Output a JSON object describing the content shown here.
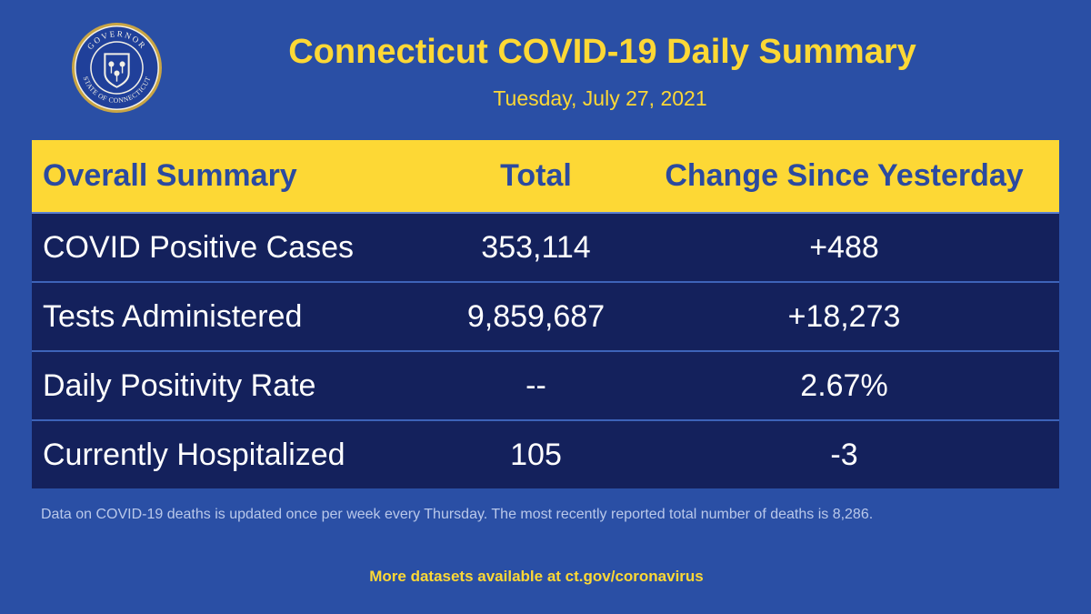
{
  "seal": {
    "top_text": "GOVERNOR",
    "bottom_text": "STATE OF CONNECTICUT"
  },
  "header": {
    "title": "Connecticut COVID-19 Daily Summary",
    "date": "Tuesday, July 27, 2021"
  },
  "table": {
    "columns": [
      "Overall Summary",
      "Total",
      "Change Since Yesterday"
    ],
    "rows": [
      {
        "label": "COVID Positive Cases",
        "total": "353,114",
        "change": "+488"
      },
      {
        "label": "Tests Administered",
        "total": "9,859,687",
        "change": "+18,273"
      },
      {
        "label": "Daily Positivity Rate",
        "total": "--",
        "change": "2.67%"
      },
      {
        "label": "Currently Hospitalized",
        "total": "105",
        "change": "-3"
      }
    ]
  },
  "footnote": "Data on COVID-19 deaths is updated once per week every Thursday. The most recently reported total number of deaths is 8,286.",
  "more_datasets": "More datasets available at ct.gov/coronavirus",
  "colors": {
    "background": "#2a4fa5",
    "accent_yellow": "#fdd835",
    "row_navy": "#14215c"
  }
}
